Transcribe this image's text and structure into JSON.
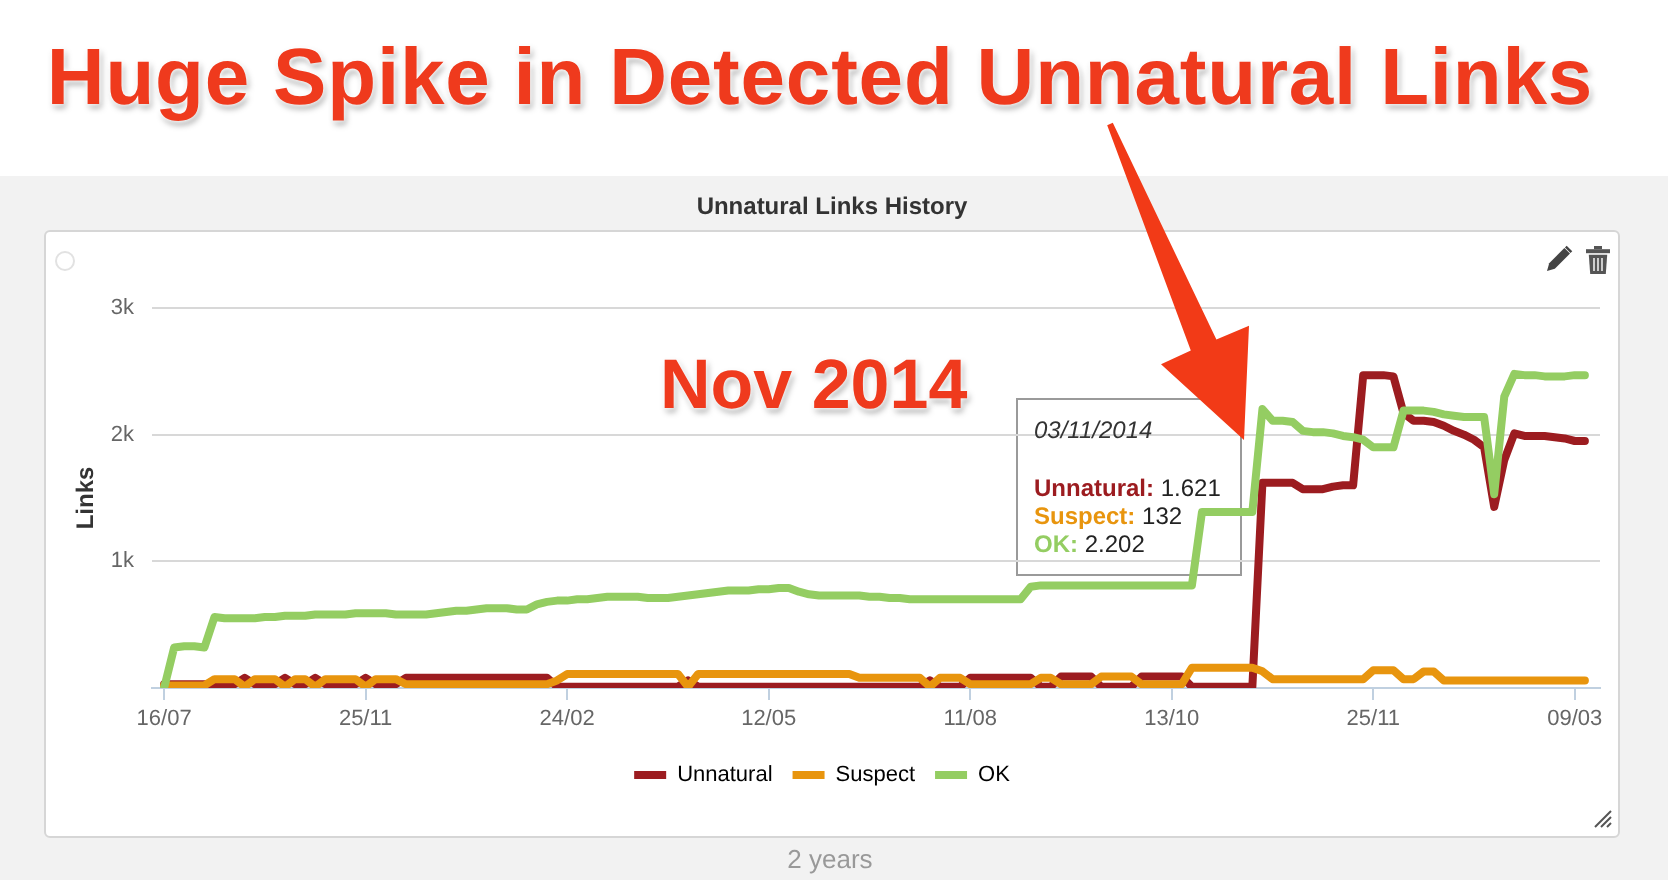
{
  "chart_data": {
    "type": "line",
    "title": "Huge Spike in Detected Unnatural Links",
    "subtitle": "Unnatural Links History",
    "ylabel": "Links",
    "annotations": [
      "Nov 2014",
      "03/11/2014",
      "Unnatural: 1.621",
      "Suspect: 132",
      "OK: 2.202",
      "2 years"
    ],
    "categories": [
      "16/07",
      null,
      null,
      null,
      null,
      null,
      null,
      null,
      null,
      null,
      null,
      null,
      null,
      null,
      null,
      null,
      null,
      null,
      null,
      null,
      "25/11",
      null,
      null,
      null,
      null,
      null,
      null,
      null,
      null,
      null,
      null,
      null,
      null,
      null,
      null,
      null,
      null,
      null,
      null,
      null,
      "24/02",
      null,
      null,
      null,
      null,
      null,
      null,
      null,
      null,
      null,
      null,
      null,
      null,
      null,
      null,
      null,
      null,
      null,
      null,
      null,
      "12/05",
      null,
      null,
      null,
      null,
      null,
      null,
      null,
      null,
      null,
      null,
      null,
      null,
      null,
      null,
      null,
      null,
      null,
      null,
      null,
      "11/08",
      null,
      null,
      null,
      null,
      null,
      null,
      null,
      null,
      null,
      null,
      null,
      null,
      null,
      null,
      null,
      null,
      null,
      null,
      null,
      "13/10",
      null,
      null,
      null,
      null,
      null,
      null,
      null,
      null,
      null,
      null,
      null,
      null,
      null,
      null,
      null,
      null,
      null,
      null,
      null,
      "25/11",
      null,
      null,
      null,
      null,
      null,
      null,
      null,
      null,
      null,
      null,
      null,
      null,
      null,
      null,
      null,
      null,
      null,
      null,
      null,
      "09/03",
      null
    ],
    "series": [
      {
        "name": "Unnatural",
        "color": "#9c1c20",
        "values": [
          30,
          30,
          30,
          30,
          30,
          30,
          30,
          30,
          80,
          30,
          30,
          30,
          80,
          30,
          30,
          80,
          30,
          30,
          30,
          30,
          80,
          30,
          30,
          30,
          80,
          80,
          80,
          80,
          80,
          80,
          80,
          80,
          80,
          80,
          80,
          80,
          80,
          80,
          80,
          10,
          10,
          10,
          10,
          10,
          10,
          10,
          10,
          10,
          10,
          10,
          10,
          10,
          60,
          10,
          10,
          10,
          10,
          10,
          10,
          10,
          10,
          10,
          10,
          10,
          10,
          10,
          10,
          10,
          10,
          10,
          10,
          10,
          10,
          10,
          10,
          10,
          60,
          10,
          10,
          10,
          80,
          80,
          80,
          80,
          80,
          80,
          80,
          10,
          10,
          90,
          90,
          90,
          90,
          10,
          10,
          10,
          10,
          90,
          90,
          90,
          90,
          90,
          10,
          10,
          10,
          10,
          10,
          10,
          10,
          1621,
          1620,
          1620,
          1620,
          1570,
          1570,
          1570,
          1590,
          1600,
          1600,
          2470,
          2470,
          2470,
          2460,
          2170,
          2110,
          2110,
          2100,
          2070,
          2030,
          2000,
          1960,
          1900,
          1430,
          1800,
          2010,
          1990,
          1990,
          1990,
          1980,
          1970,
          1950,
          1950
        ]
      },
      {
        "name": "Suspect",
        "color": "#e8950e",
        "values": [
          20,
          20,
          20,
          20,
          20,
          70,
          70,
          70,
          10,
          70,
          70,
          70,
          10,
          70,
          70,
          10,
          70,
          70,
          70,
          70,
          10,
          70,
          70,
          70,
          30,
          30,
          30,
          30,
          30,
          30,
          30,
          30,
          30,
          30,
          30,
          30,
          30,
          30,
          30,
          60,
          110,
          110,
          110,
          110,
          110,
          110,
          110,
          110,
          110,
          110,
          110,
          110,
          10,
          110,
          110,
          110,
          110,
          110,
          110,
          110,
          110,
          110,
          110,
          110,
          110,
          110,
          110,
          110,
          110,
          80,
          80,
          80,
          80,
          80,
          80,
          80,
          10,
          80,
          80,
          80,
          30,
          30,
          30,
          30,
          30,
          30,
          30,
          80,
          80,
          30,
          30,
          30,
          30,
          90,
          90,
          90,
          90,
          30,
          30,
          30,
          30,
          30,
          160,
          160,
          160,
          160,
          160,
          160,
          160,
          132,
          70,
          70,
          70,
          70,
          70,
          70,
          70,
          70,
          70,
          70,
          140,
          140,
          140,
          70,
          70,
          130,
          130,
          60,
          60,
          60,
          60,
          60,
          60,
          60,
          60,
          60,
          60,
          60,
          60,
          60,
          60,
          60
        ]
      },
      {
        "name": "OK",
        "color": "#94cd62",
        "values": [
          0,
          320,
          330,
          330,
          320,
          560,
          550,
          550,
          550,
          550,
          560,
          560,
          570,
          570,
          570,
          580,
          580,
          580,
          580,
          590,
          590,
          590,
          590,
          580,
          580,
          580,
          580,
          590,
          600,
          610,
          610,
          620,
          630,
          630,
          630,
          620,
          620,
          660,
          680,
          690,
          690,
          700,
          700,
          710,
          720,
          720,
          720,
          720,
          710,
          710,
          710,
          720,
          730,
          740,
          750,
          760,
          770,
          770,
          770,
          780,
          780,
          790,
          790,
          760,
          740,
          730,
          730,
          730,
          730,
          730,
          720,
          720,
          710,
          710,
          700,
          700,
          700,
          700,
          700,
          700,
          700,
          700,
          700,
          700,
          700,
          700,
          800,
          810,
          810,
          810,
          810,
          810,
          810,
          810,
          810,
          810,
          810,
          810,
          810,
          810,
          810,
          810,
          810,
          1390,
          1390,
          1390,
          1390,
          1390,
          1390,
          2202,
          2110,
          2110,
          2100,
          2030,
          2020,
          2020,
          2010,
          1990,
          1980,
          1960,
          1900,
          1900,
          1900,
          2190,
          2190,
          2190,
          2180,
          2160,
          2150,
          2140,
          2140,
          2140,
          1530,
          2300,
          2480,
          2470,
          2470,
          2460,
          2460,
          2460,
          2470,
          2470
        ]
      }
    ],
    "ylim": [
      0,
      3000
    ],
    "yticks": [
      {
        "value": 0,
        "label": null
      },
      {
        "value": 1000,
        "label": "1k"
      },
      {
        "value": 2000,
        "label": "2k"
      },
      {
        "value": 3000,
        "label": "3k"
      }
    ],
    "grid": "y",
    "legend": "bottom"
  }
}
